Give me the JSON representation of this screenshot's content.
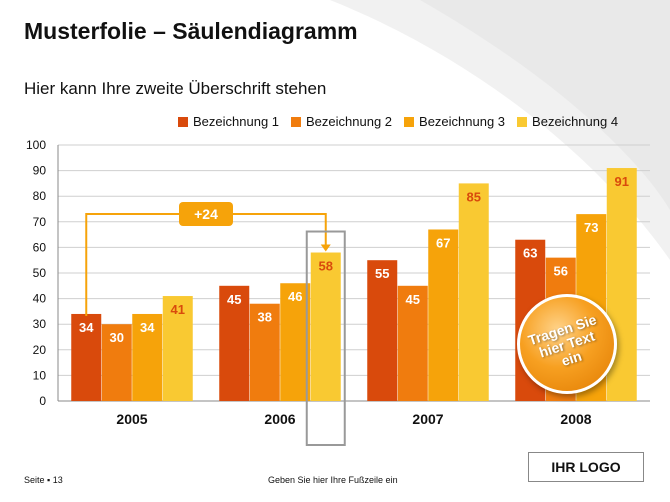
{
  "slide": {
    "title": "Musterfolie – Säulendiagramm",
    "subtitle": "Hier kann Ihre zweite Überschrift stehen",
    "footer_page": "Seite ▪ 13",
    "footer_text": "Geben Sie hier Ihre Fußzeile ein",
    "logo": "IHR LOGO",
    "sticker": "Tragen Sie hier Text ein"
  },
  "colors": {
    "series": [
      "#d94a0c",
      "#f07c0e",
      "#f6a30a",
      "#f9c932"
    ],
    "annotation": "#f6a30a",
    "label_dark": "#d94a0c"
  },
  "chart_data": {
    "type": "bar",
    "categories": [
      "2005",
      "2006",
      "2007",
      "2008"
    ],
    "series": [
      {
        "name": "Bezeichnung 1",
        "values": [
          34,
          45,
          55,
          63
        ]
      },
      {
        "name": "Bezeichnung 2",
        "values": [
          30,
          38,
          45,
          56
        ]
      },
      {
        "name": "Bezeichnung 3",
        "values": [
          34,
          46,
          67,
          73
        ]
      },
      {
        "name": "Bezeichnung 4",
        "values": [
          41,
          58,
          85,
          91
        ]
      }
    ],
    "ylim": [
      0,
      100
    ],
    "yticks": [
      0,
      10,
      20,
      30,
      40,
      50,
      60,
      70,
      80,
      90,
      100
    ],
    "grid": true,
    "legend": "top",
    "annotation": {
      "label": "+24",
      "from": {
        "category": "2005",
        "series": 0
      },
      "to": {
        "category": "2006",
        "series": 3
      },
      "highlight": {
        "category": "2006",
        "series": 3
      }
    }
  }
}
